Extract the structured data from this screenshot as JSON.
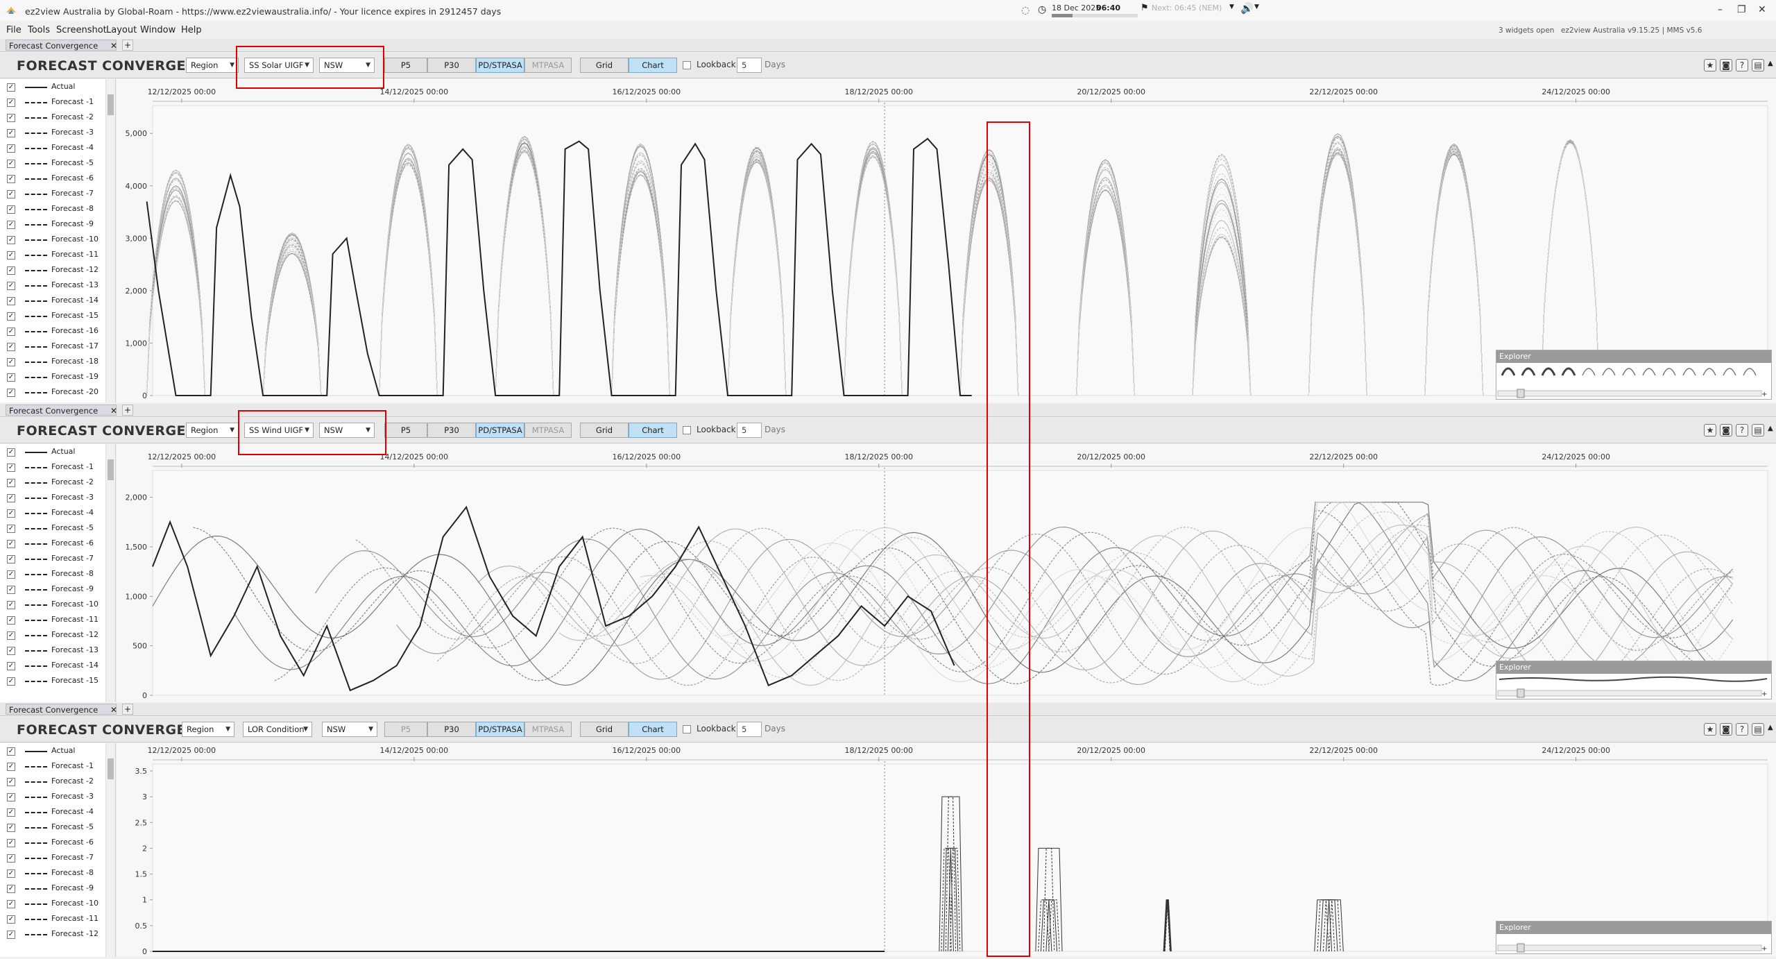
{
  "window": {
    "title": "ez2view Australia by Global-Roam - https://www.ez2viewaustralia.info/ - Your licence expires in 2912457 days",
    "date": "18 Dec 2025",
    "time": "06:40",
    "next": "Next: 06:45 (NEM)",
    "widgets_open": "3 widgets open",
    "version": "ez2view Australia v9.15.25 | MMS v5.6"
  },
  "menu": [
    "File",
    "Tools",
    "Screenshot",
    "Layout",
    "Window",
    "Help"
  ],
  "panels": [
    {
      "tab": "Forecast Convergence",
      "title": "FORECAST CONVERGENCE",
      "region_select": "Region",
      "metric_select": "SS Solar UIGF",
      "state_select": "NSW",
      "buttons": [
        "P5",
        "P30",
        "PD/STPASA",
        "MTPASA"
      ],
      "grid_label": "Grid",
      "chart_label": "Chart",
      "lookback_label": "Lookback",
      "lookback_value": "5",
      "days_label": "Days",
      "legend": [
        "Actual",
        "Forecast -1",
        "Forecast -2",
        "Forecast -3",
        "Forecast -4",
        "Forecast -5",
        "Forecast -6",
        "Forecast -7",
        "Forecast -8",
        "Forecast -9",
        "Forecast -10",
        "Forecast -11",
        "Forecast -12",
        "Forecast -13",
        "Forecast -14",
        "Forecast -15",
        "Forecast -16",
        "Forecast -17",
        "Forecast -18",
        "Forecast -19",
        "Forecast -20"
      ],
      "explorer_label": "Explorer"
    },
    {
      "tab": "Forecast Convergence",
      "title": "FORECAST CONVERGENCE",
      "region_select": "Region",
      "metric_select": "SS Wind UIGF",
      "state_select": "NSW",
      "buttons": [
        "P5",
        "P30",
        "PD/STPASA",
        "MTPASA"
      ],
      "grid_label": "Grid",
      "chart_label": "Chart",
      "lookback_label": "Lookback",
      "lookback_value": "5",
      "days_label": "Days",
      "legend": [
        "Actual",
        "Forecast -1",
        "Forecast -2",
        "Forecast -3",
        "Forecast -4",
        "Forecast -5",
        "Forecast -6",
        "Forecast -7",
        "Forecast -8",
        "Forecast -9",
        "Forecast -10",
        "Forecast -11",
        "Forecast -12",
        "Forecast -13",
        "Forecast -14",
        "Forecast -15"
      ],
      "explorer_label": "Explorer"
    },
    {
      "tab": "Forecast Convergence",
      "title": "FORECAST CONVERGENCE",
      "region_select": "Region",
      "metric_select": "LOR Condition",
      "state_select": "NSW",
      "buttons": [
        "P5",
        "P30",
        "PD/STPASA",
        "MTPASA"
      ],
      "grid_label": "Grid",
      "chart_label": "Chart",
      "lookback_label": "Lookback",
      "lookback_value": "5",
      "days_label": "Days",
      "legend": [
        "Actual",
        "Forecast -1",
        "Forecast -2",
        "Forecast -3",
        "Forecast -4",
        "Forecast -5",
        "Forecast -6",
        "Forecast -7",
        "Forecast -8",
        "Forecast -9",
        "Forecast -10",
        "Forecast -11",
        "Forecast -12"
      ],
      "explorer_label": "Explorer"
    }
  ],
  "chart_data": [
    {
      "type": "line",
      "x_ticks": [
        "12/12/2025 00:00",
        "14/12/2025 00:00",
        "16/12/2025 00:00",
        "18/12/2025 00:00",
        "20/12/2025 00:00",
        "22/12/2025 00:00",
        "24/12/2025 00:00"
      ],
      "y_ticks": [
        "0",
        "1,000",
        "2,000",
        "3,000",
        "4,000",
        "5,000"
      ],
      "ylim": [
        0,
        5400
      ],
      "xlim_days": [
        0,
        13.9
      ],
      "now_day": 6.3,
      "series": [
        {
          "x": [
            -0.05,
            0.05,
            0.2,
            0.25,
            0.5,
            0.55,
            0.67,
            0.75,
            0.85,
            0.95,
            1.05,
            1.2,
            1.25,
            1.5,
            1.55,
            1.67,
            1.75,
            1.85,
            1.95,
            2.05,
            2.2,
            2.25,
            2.5,
            2.55,
            2.67,
            2.75,
            2.85,
            2.95,
            3.05,
            3.2,
            3.25,
            3.5,
            3.55,
            3.67,
            3.75,
            3.85,
            3.95,
            4.05,
            4.2,
            4.25,
            4.5,
            4.55,
            4.67,
            4.75,
            4.85,
            4.95,
            5.05,
            5.2,
            5.25,
            5.5,
            5.55,
            5.67,
            5.75,
            5.85,
            5.95,
            6.05,
            6.2,
            6.25,
            6.5,
            6.55,
            6.67,
            6.75,
            6.85,
            6.95,
            7.05
          ],
          "y": [
            3700,
            2000,
            0,
            0,
            0,
            3200,
            4200,
            3600,
            1500,
            0,
            0,
            0,
            0,
            0,
            2700,
            3000,
            2000,
            800,
            0,
            0,
            0,
            0,
            0,
            4400,
            4700,
            4500,
            2000,
            0,
            0,
            0,
            0,
            0,
            4700,
            4850,
            4700,
            2000,
            0,
            0,
            0,
            0,
            0,
            4400,
            4800,
            4500,
            2000,
            0,
            0,
            0,
            0,
            0,
            4500,
            4800,
            4600,
            2000,
            0,
            0,
            0,
            0,
            0,
            4700,
            4900,
            4700,
            2500,
            0,
            0
          ]
        },
        {
          "forecast": true,
          "shades": 20,
          "day_peaks": [
            4000,
            2900,
            4600,
            4800,
            4500,
            4600,
            4700,
            4400,
            4200,
            3800,
            4800,
            4700,
            4850
          ],
          "day_spread": [
            300,
            200,
            200,
            150,
            300,
            150,
            150,
            300,
            300,
            800,
            200,
            100,
            30
          ]
        }
      ]
    },
    {
      "type": "line",
      "x_ticks": [
        "12/12/2025 00:00",
        "14/12/2025 00:00",
        "16/12/2025 00:00",
        "18/12/2025 00:00",
        "20/12/2025 00:00",
        "22/12/2025 00:00",
        "24/12/2025 00:00"
      ],
      "y_ticks": [
        "0",
        "500",
        "1,000",
        "1,500",
        "2,000"
      ],
      "ylim": [
        0,
        2200
      ],
      "xlim_days": [
        0,
        13.9
      ],
      "now_day": 6.3,
      "series": [
        {
          "x": [
            0,
            0.15,
            0.3,
            0.5,
            0.7,
            0.9,
            1.1,
            1.3,
            1.5,
            1.7,
            1.9,
            2.1,
            2.3,
            2.5,
            2.7,
            2.9,
            3.1,
            3.3,
            3.5,
            3.7,
            3.9,
            4.1,
            4.3,
            4.5,
            4.7,
            4.9,
            5.1,
            5.3,
            5.5,
            5.7,
            5.9,
            6.1,
            6.3,
            6.5,
            6.7,
            6.9
          ],
          "y": [
            1300,
            1750,
            1300,
            400,
            800,
            1300,
            600,
            200,
            700,
            50,
            150,
            300,
            700,
            1600,
            1900,
            1200,
            800,
            600,
            1300,
            1600,
            700,
            800,
            1000,
            1300,
            1700,
            1200,
            700,
            100,
            200,
            400,
            600,
            900,
            700,
            1000,
            850,
            300
          ]
        },
        {
          "forecast": true,
          "shades": 15
        }
      ]
    },
    {
      "type": "line",
      "x_ticks": [
        "12/12/2025 00:00",
        "14/12/2025 00:00",
        "16/12/2025 00:00",
        "18/12/2025 00:00",
        "20/12/2025 00:00",
        "22/12/2025 00:00",
        "24/12/2025 00:00"
      ],
      "y_ticks": [
        "0",
        "0.5",
        "1",
        "1.5",
        "2",
        "2.5",
        "3",
        "3.5"
      ],
      "ylim": [
        0,
        3.5
      ],
      "xlim_days": [
        0,
        13.9
      ],
      "now_day": 6.3,
      "events": [
        {
          "start": 6.77,
          "end": 6.92,
          "level": 3
        },
        {
          "start": 7.6,
          "end": 7.78,
          "level": 2
        },
        {
          "start": 8.7,
          "end": 8.72,
          "level": 1
        },
        {
          "start": 10.0,
          "end": 10.2,
          "level": 1
        }
      ]
    }
  ]
}
